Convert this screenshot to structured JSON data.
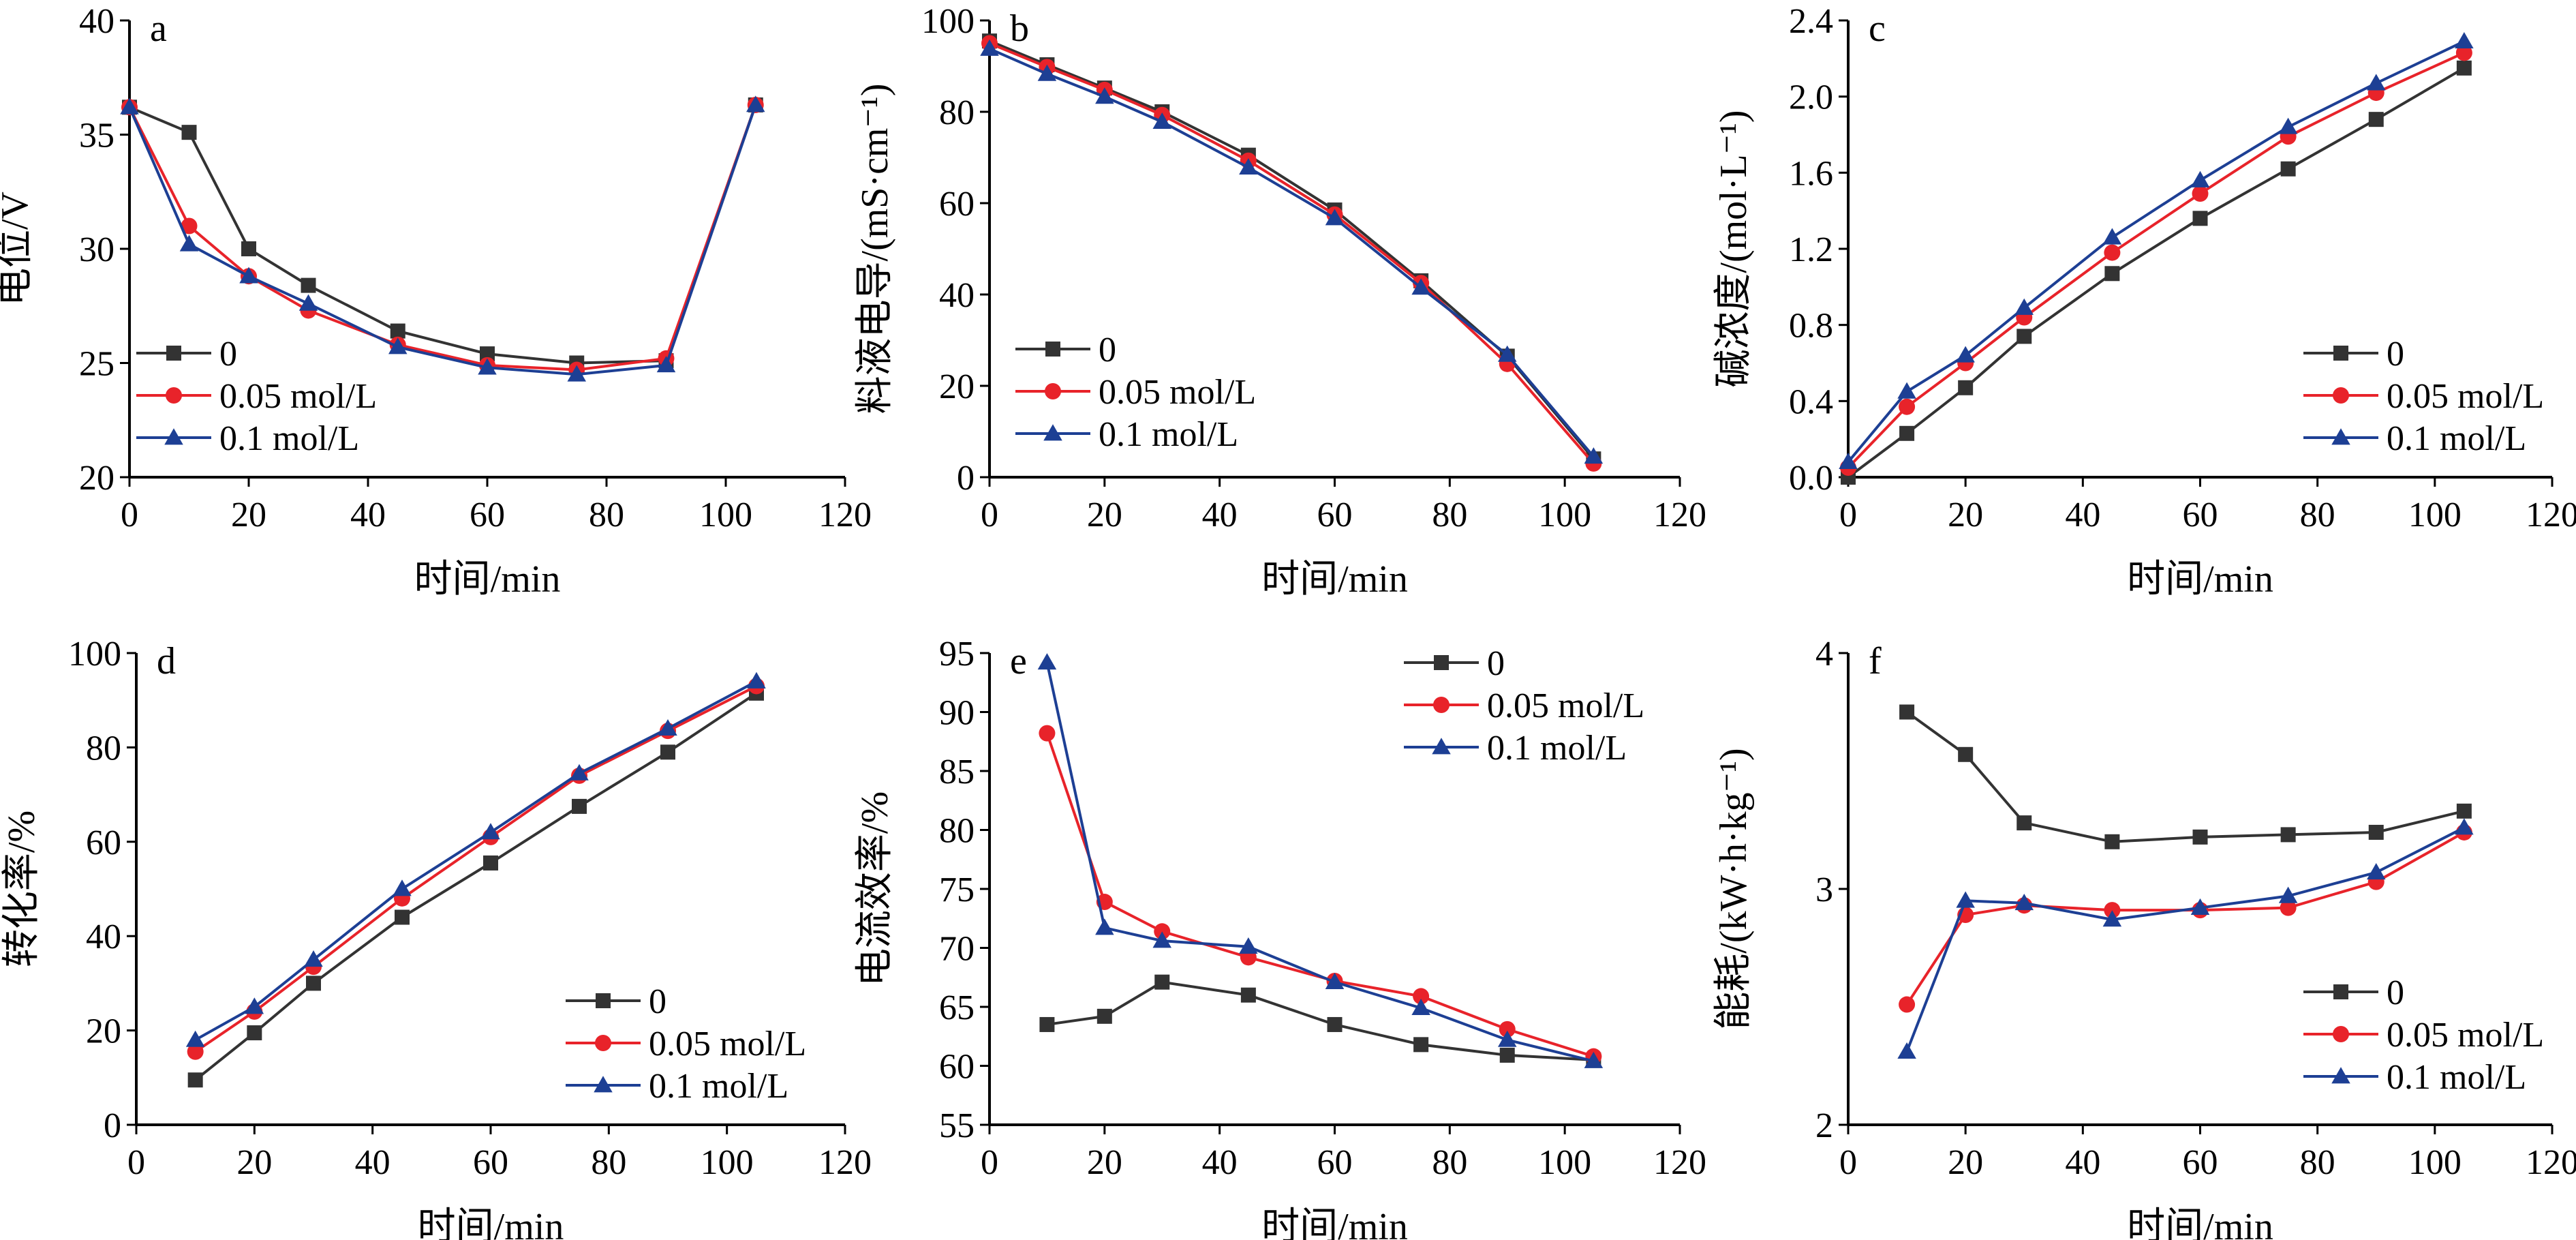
{
  "colors": {
    "s0": "#333333",
    "s005": "#e8232a",
    "s01": "#1d3f94"
  },
  "chart_data": [
    {
      "id": "a",
      "panel_letter": "a",
      "type": "line",
      "xlabel": "时间/min",
      "ylabel": "电位/V",
      "xlim": [
        0,
        120
      ],
      "ylim": [
        20,
        40
      ],
      "xticks": [
        0,
        20,
        40,
        60,
        80,
        100,
        120
      ],
      "yticks": [
        20,
        25,
        30,
        35,
        40
      ],
      "legend_position": "bottom-left",
      "series": [
        {
          "name": "0",
          "marker": "square",
          "x": [
            0,
            10,
            20,
            30,
            45,
            60,
            75,
            90,
            105
          ],
          "y": [
            36.2,
            35.1,
            30.0,
            28.4,
            26.4,
            25.4,
            25.0,
            25.1,
            36.3
          ]
        },
        {
          "name": "0.05 mol/L",
          "marker": "circle",
          "x": [
            0,
            10,
            20,
            30,
            45,
            60,
            75,
            90,
            105
          ],
          "y": [
            36.2,
            31.0,
            28.8,
            27.3,
            25.8,
            24.9,
            24.7,
            25.2,
            36.3
          ]
        },
        {
          "name": "0.1 mol/L",
          "marker": "triangle",
          "x": [
            0,
            10,
            20,
            30,
            45,
            60,
            75,
            90,
            105
          ],
          "y": [
            36.2,
            30.2,
            28.8,
            27.6,
            25.7,
            24.8,
            24.5,
            24.9,
            36.3
          ]
        }
      ]
    },
    {
      "id": "b",
      "panel_letter": "b",
      "type": "line",
      "xlabel": "时间/min",
      "ylabel": "料液电导/(mS·cm⁻¹)",
      "xlim": [
        0,
        120
      ],
      "ylim": [
        0,
        100
      ],
      "xticks": [
        0,
        20,
        40,
        60,
        80,
        100,
        120
      ],
      "yticks": [
        0,
        20,
        40,
        60,
        80,
        100
      ],
      "legend_position": "bottom-left",
      "series": [
        {
          "name": "0",
          "marker": "square",
          "x": [
            0,
            10,
            20,
            30,
            45,
            60,
            75,
            90,
            105
          ],
          "y": [
            95.5,
            90.3,
            85.2,
            80.0,
            70.5,
            58.5,
            43.0,
            26.5,
            4.0
          ]
        },
        {
          "name": "0.05 mol/L",
          "marker": "circle",
          "x": [
            0,
            10,
            20,
            30,
            45,
            60,
            75,
            90,
            105
          ],
          "y": [
            95.0,
            89.8,
            84.8,
            79.3,
            69.3,
            57.5,
            42.5,
            24.8,
            3.0
          ]
        },
        {
          "name": "0.1 mol/L",
          "marker": "triangle",
          "x": [
            0,
            10,
            20,
            30,
            45,
            60,
            75,
            90,
            105
          ],
          "y": [
            93.8,
            88.3,
            83.3,
            77.8,
            67.8,
            56.7,
            41.5,
            26.8,
            4.5
          ]
        }
      ]
    },
    {
      "id": "c",
      "panel_letter": "c",
      "type": "line",
      "xlabel": "时间/min",
      "ylabel": "碱浓度/(mol·L⁻¹)",
      "xlim": [
        0,
        120
      ],
      "ylim": [
        0,
        2.4
      ],
      "xticks": [
        0,
        20,
        40,
        60,
        80,
        100,
        120
      ],
      "yticks": [
        "0.0",
        "0.4",
        "0.8",
        "1.2",
        "1.6",
        "2.0",
        "2.4"
      ],
      "legend_position": "bottom-right",
      "series": [
        {
          "name": "0",
          "marker": "square",
          "x": [
            0,
            10,
            20,
            30,
            45,
            60,
            75,
            90,
            105
          ],
          "y": [
            0.0,
            0.23,
            0.47,
            0.74,
            1.07,
            1.36,
            1.62,
            1.88,
            2.15
          ]
        },
        {
          "name": "0.05 mol/L",
          "marker": "circle",
          "x": [
            0,
            10,
            20,
            30,
            45,
            60,
            75,
            90,
            105
          ],
          "y": [
            0.05,
            0.37,
            0.6,
            0.84,
            1.18,
            1.49,
            1.79,
            2.02,
            2.23
          ]
        },
        {
          "name": "0.1 mol/L",
          "marker": "triangle",
          "x": [
            0,
            10,
            20,
            30,
            45,
            60,
            75,
            90,
            105
          ],
          "y": [
            0.08,
            0.45,
            0.64,
            0.89,
            1.26,
            1.56,
            1.84,
            2.07,
            2.29
          ]
        }
      ]
    },
    {
      "id": "d",
      "panel_letter": "d",
      "type": "line",
      "xlabel": "时间/min",
      "ylabel": "转化率/%",
      "xlim": [
        0,
        120
      ],
      "ylim": [
        0,
        100
      ],
      "xticks": [
        0,
        20,
        40,
        60,
        80,
        100,
        120
      ],
      "yticks": [
        0,
        20,
        40,
        60,
        80,
        100
      ],
      "legend_position": "bottom-right",
      "series": [
        {
          "name": "0",
          "marker": "square",
          "x": [
            10,
            20,
            30,
            45,
            60,
            75,
            90,
            105
          ],
          "y": [
            9.5,
            19.5,
            30.0,
            44.0,
            55.5,
            67.5,
            79.0,
            91.5
          ]
        },
        {
          "name": "0.05 mol/L",
          "marker": "circle",
          "x": [
            10,
            20,
            30,
            45,
            60,
            75,
            90,
            105
          ],
          "y": [
            15.5,
            24.0,
            33.5,
            48.0,
            61.0,
            74.0,
            83.5,
            93.0
          ]
        },
        {
          "name": "0.1 mol/L",
          "marker": "triangle",
          "x": [
            10,
            20,
            30,
            45,
            60,
            75,
            90,
            105
          ],
          "y": [
            18.0,
            25.0,
            35.0,
            50.0,
            62.0,
            74.5,
            84.0,
            94.0
          ]
        }
      ]
    },
    {
      "id": "e",
      "panel_letter": "e",
      "type": "line",
      "xlabel": "时间/min",
      "ylabel": "电流效率/%",
      "xlim": [
        0,
        120
      ],
      "ylim": [
        55,
        95
      ],
      "xticks": [
        0,
        20,
        40,
        60,
        80,
        100,
        120
      ],
      "yticks": [
        55,
        60,
        65,
        70,
        75,
        80,
        85,
        90,
        95
      ],
      "legend_position": "top-right",
      "series": [
        {
          "name": "0",
          "marker": "square",
          "x": [
            10,
            20,
            30,
            45,
            60,
            75,
            90,
            105
          ],
          "y": [
            63.5,
            64.2,
            67.1,
            66.0,
            63.5,
            61.8,
            60.9,
            60.5
          ]
        },
        {
          "name": "0.05 mol/L",
          "marker": "circle",
          "x": [
            10,
            20,
            30,
            45,
            60,
            75,
            90,
            105
          ],
          "y": [
            88.2,
            73.9,
            71.4,
            69.2,
            67.2,
            65.9,
            63.1,
            60.8
          ]
        },
        {
          "name": "0.1 mol/L",
          "marker": "triangle",
          "x": [
            10,
            20,
            30,
            45,
            60,
            75,
            90,
            105
          ],
          "y": [
            94.2,
            71.7,
            70.6,
            70.1,
            67.1,
            64.9,
            62.2,
            60.4
          ]
        }
      ]
    },
    {
      "id": "f",
      "panel_letter": "f",
      "type": "line",
      "xlabel": "时间/min",
      "ylabel": "能耗/(kW·h·kg⁻¹)",
      "xlim": [
        0,
        120
      ],
      "ylim": [
        2,
        4
      ],
      "xticks": [
        0,
        20,
        40,
        60,
        80,
        100,
        120
      ],
      "yticks": [
        2,
        3,
        4
      ],
      "legend_position": "bottom-right",
      "series": [
        {
          "name": "0",
          "marker": "square",
          "x": [
            10,
            20,
            30,
            45,
            60,
            75,
            90,
            105
          ],
          "y": [
            3.75,
            3.57,
            3.28,
            3.2,
            3.22,
            3.23,
            3.24,
            3.33
          ]
        },
        {
          "name": "0.05 mol/L",
          "marker": "circle",
          "x": [
            10,
            20,
            30,
            45,
            60,
            75,
            90,
            105
          ],
          "y": [
            2.51,
            2.89,
            2.93,
            2.91,
            2.91,
            2.92,
            3.03,
            3.24
          ]
        },
        {
          "name": "0.1 mol/L",
          "marker": "triangle",
          "x": [
            10,
            20,
            30,
            45,
            60,
            75,
            90,
            105
          ],
          "y": [
            2.31,
            2.95,
            2.94,
            2.87,
            2.92,
            2.97,
            3.07,
            3.26
          ]
        }
      ]
    }
  ]
}
